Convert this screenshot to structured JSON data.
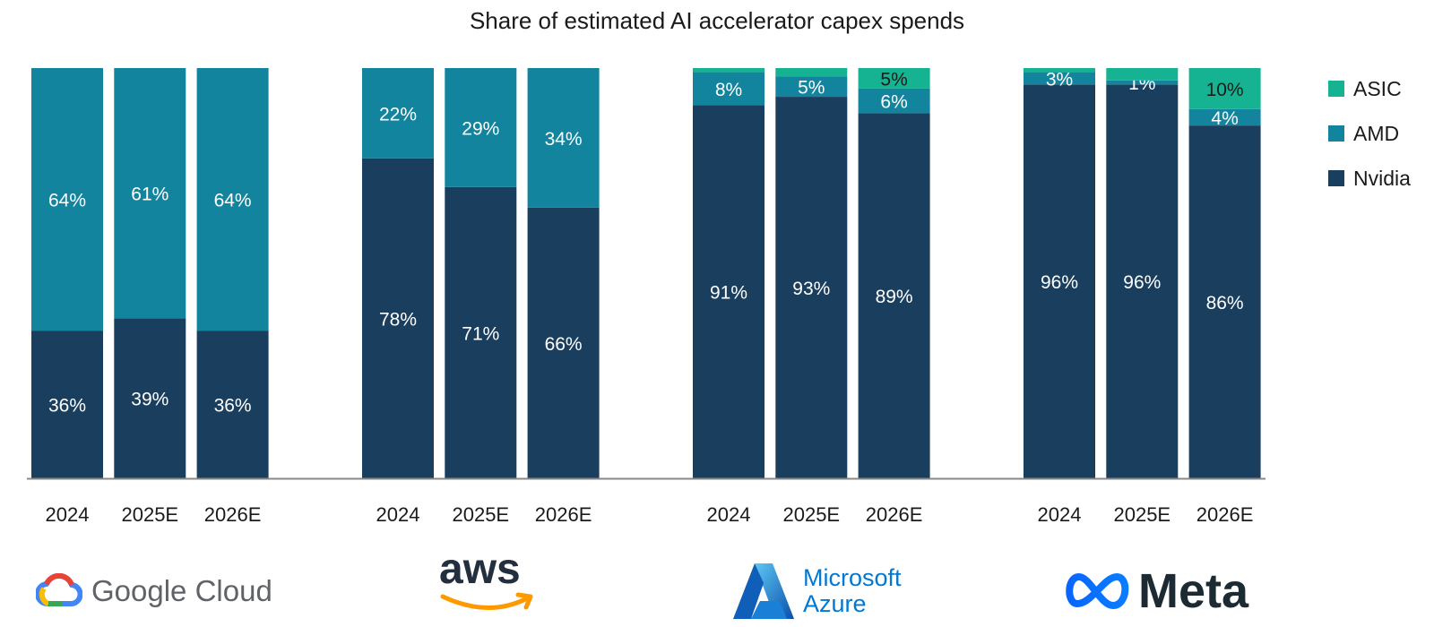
{
  "chart_data": {
    "type": "stacked-bar",
    "title": "Share of estimated AI accelerator capex spends",
    "ylim": [
      0,
      100
    ],
    "stack_order": [
      "Nvidia",
      "AMD",
      "ASIC"
    ],
    "legend": [
      {
        "name": "ASIC",
        "color": "#15b392"
      },
      {
        "name": "AMD",
        "color": "#12849e"
      },
      {
        "name": "Nvidia",
        "color": "#1a3f5e"
      }
    ],
    "groups": [
      {
        "name": "Google Cloud",
        "bars": [
          {
            "label": "2024",
            "Nvidia": 36,
            "AMD": 64,
            "ASIC": 0,
            "labels": {
              "Nvidia": "36%",
              "AMD": "64%"
            }
          },
          {
            "label": "2025E",
            "Nvidia": 39,
            "AMD": 61,
            "ASIC": 0,
            "labels": {
              "Nvidia": "39%",
              "AMD": "61%"
            }
          },
          {
            "label": "2026E",
            "Nvidia": 36,
            "AMD": 64,
            "ASIC": 0,
            "labels": {
              "Nvidia": "36%",
              "AMD": "64%"
            }
          }
        ]
      },
      {
        "name": "aws",
        "bars": [
          {
            "label": "2024",
            "Nvidia": 78,
            "AMD": 22,
            "ASIC": 0,
            "labels": {
              "Nvidia": "78%",
              "AMD": "22%"
            }
          },
          {
            "label": "2025E",
            "Nvidia": 71,
            "AMD": 29,
            "ASIC": 0,
            "labels": {
              "Nvidia": "71%",
              "AMD": "29%"
            }
          },
          {
            "label": "2026E",
            "Nvidia": 66,
            "AMD": 34,
            "ASIC": 0,
            "labels": {
              "Nvidia": "66%",
              "AMD": "34%"
            }
          }
        ]
      },
      {
        "name": "Microsoft Azure",
        "bars": [
          {
            "label": "2024",
            "Nvidia": 91,
            "AMD": 8,
            "ASIC": 1,
            "labels": {
              "Nvidia": "91%",
              "AMD": "8%"
            }
          },
          {
            "label": "2025E",
            "Nvidia": 93,
            "AMD": 5,
            "ASIC": 2,
            "labels": {
              "Nvidia": "93%",
              "AMD": "5%"
            }
          },
          {
            "label": "2026E",
            "Nvidia": 89,
            "AMD": 6,
            "ASIC": 5,
            "labels": {
              "Nvidia": "89%",
              "AMD": "6%",
              "ASIC": "5%"
            }
          }
        ]
      },
      {
        "name": "Meta",
        "bars": [
          {
            "label": "2024",
            "Nvidia": 96,
            "AMD": 3,
            "ASIC": 1,
            "labels": {
              "Nvidia": "96%",
              "AMD": "3%"
            }
          },
          {
            "label": "2025E",
            "Nvidia": 96,
            "AMD": 1,
            "ASIC": 3,
            "labels": {
              "Nvidia": "96%",
              "AMD": "1%"
            }
          },
          {
            "label": "2026E",
            "Nvidia": 86,
            "AMD": 4,
            "ASIC": 10,
            "labels": {
              "Nvidia": "86%",
              "AMD": "4%",
              "ASIC": "10%"
            }
          }
        ]
      }
    ]
  },
  "logos": {
    "google": {
      "text": "Google Cloud"
    },
    "aws": {
      "text": "aws"
    },
    "azure": {
      "line1": "Microsoft",
      "line2": "Azure"
    },
    "meta": {
      "text": "Meta"
    }
  }
}
